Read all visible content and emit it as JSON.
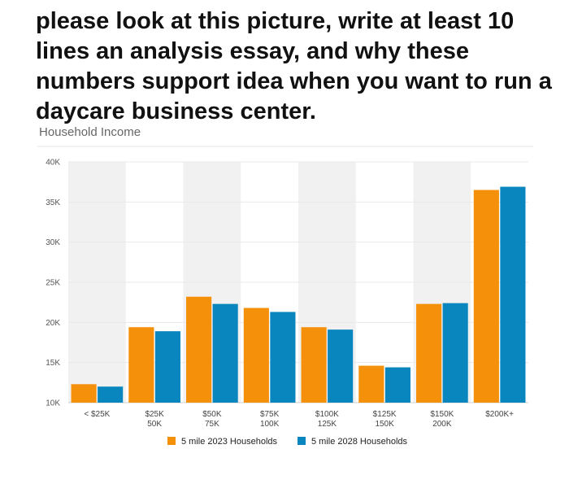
{
  "prompt": {
    "text": "please look at this picture, write at least 10 lines an analysis essay, and why these numbers support idea when you want to run a daycare business center."
  },
  "chart_data": {
    "type": "bar",
    "title": "Household Income",
    "categories": [
      [
        "< $25K"
      ],
      [
        "$25K",
        "50K"
      ],
      [
        "$50K",
        "75K"
      ],
      [
        "$75K",
        "100K"
      ],
      [
        "$100K",
        "125K"
      ],
      [
        "$125K",
        "150K"
      ],
      [
        "$150K",
        "200K"
      ],
      [
        "$200K+"
      ]
    ],
    "series": [
      {
        "name": "5 mile 2023 Households",
        "color": "#F5900B",
        "values": [
          12300,
          19400,
          23200,
          21800,
          19400,
          14600,
          22300,
          36500
        ]
      },
      {
        "name": "5 mile 2028 Households",
        "color": "#0A86BE",
        "values": [
          12000,
          18900,
          22300,
          21300,
          19100,
          14400,
          22400,
          36900
        ]
      }
    ],
    "ylim": [
      10000,
      40000
    ],
    "yticks": [
      {
        "value": 10000,
        "label": "10K"
      },
      {
        "value": 15000,
        "label": "15K"
      },
      {
        "value": 20000,
        "label": "20K"
      },
      {
        "value": 25000,
        "label": "25K"
      },
      {
        "value": 30000,
        "label": "30K"
      },
      {
        "value": 35000,
        "label": "35K"
      },
      {
        "value": 40000,
        "label": "40K"
      }
    ],
    "grid": true,
    "legend_position": "bottom-center",
    "band_color": "#F1F1F1"
  }
}
